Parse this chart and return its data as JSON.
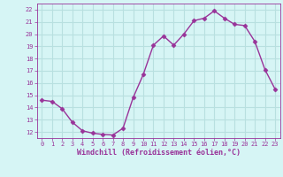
{
  "x": [
    0,
    1,
    2,
    3,
    4,
    5,
    6,
    7,
    8,
    9,
    10,
    11,
    12,
    13,
    14,
    15,
    16,
    17,
    18,
    19,
    20,
    21,
    22,
    23
  ],
  "y": [
    14.6,
    14.5,
    13.9,
    12.8,
    12.1,
    11.9,
    11.8,
    11.75,
    12.3,
    14.8,
    16.7,
    19.1,
    19.85,
    19.1,
    20.0,
    21.1,
    21.3,
    21.9,
    21.3,
    20.8,
    20.7,
    19.4,
    17.1,
    15.5
  ],
  "line_color": "#993399",
  "marker": "D",
  "markersize": 2.5,
  "bg_color": "#d6f5f5",
  "grid_color": "#b8e0e0",
  "xlabel": "Windchill (Refroidissement éolien,°C)",
  "xlabel_color": "#993399",
  "tick_color": "#993399",
  "ylim": [
    11.5,
    22.5
  ],
  "yticks": [
    12,
    13,
    14,
    15,
    16,
    17,
    18,
    19,
    20,
    21,
    22
  ],
  "xlim": [
    -0.5,
    23.5
  ],
  "xticks": [
    0,
    1,
    2,
    3,
    4,
    5,
    6,
    7,
    8,
    9,
    10,
    11,
    12,
    13,
    14,
    15,
    16,
    17,
    18,
    19,
    20,
    21,
    22,
    23
  ],
  "tick_fontsize": 5.0,
  "xlabel_fontsize": 6.0
}
